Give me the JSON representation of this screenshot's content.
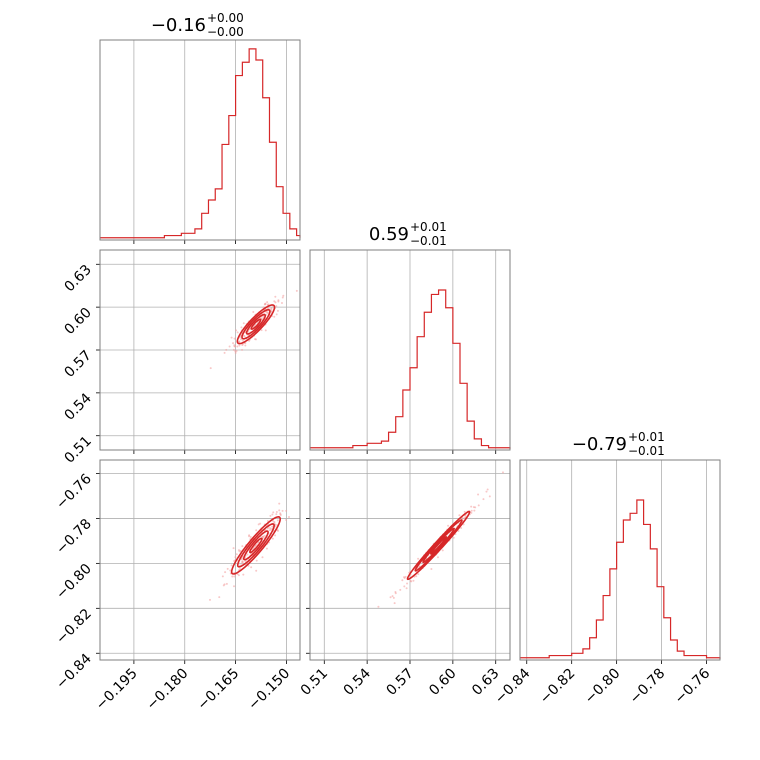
{
  "chart_data": {
    "type": "corner",
    "color": "#d62728",
    "scatter_color": "#f4a4a4",
    "grid": true,
    "parameters": [
      {
        "range": [
          -0.205,
          -0.146
        ],
        "ticks": [
          -0.195,
          -0.18,
          -0.165,
          -0.15
        ],
        "tick_labels": [
          "−0.195",
          "−0.180",
          "−0.165",
          "−0.150"
        ]
      },
      {
        "range": [
          0.5,
          0.64
        ],
        "ticks": [
          0.51,
          0.54,
          0.57,
          0.6,
          0.63
        ],
        "tick_labels": [
          "0.51",
          "0.54",
          "0.57",
          "0.60",
          "0.63"
        ]
      },
      {
        "range": [
          -0.843,
          -0.754
        ],
        "ticks": [
          -0.84,
          -0.82,
          -0.8,
          -0.78,
          -0.76
        ],
        "tick_labels": [
          "−0.84",
          "−0.82",
          "−0.80",
          "−0.78",
          "−0.76"
        ]
      }
    ],
    "titles": [
      {
        "main": "−0.16",
        "upper": "+0.00",
        "lower": "−0.00"
      },
      {
        "main": "0.59",
        "upper": "+0.01",
        "lower": "−0.01"
      },
      {
        "main": "−0.79",
        "upper": "+0.01",
        "lower": "−0.01"
      }
    ],
    "histograms": [
      {
        "x": [
          -0.205,
          -0.186,
          -0.183,
          -0.181,
          -0.179,
          -0.177,
          -0.175,
          -0.173,
          -0.171,
          -0.169,
          -0.167,
          -0.165,
          -0.163,
          -0.161,
          -0.159,
          -0.157,
          -0.155,
          -0.153,
          -0.151,
          -0.149,
          -0.147,
          -0.146
        ],
        "counts": [
          0.01,
          0.02,
          0.02,
          0.03,
          0.03,
          0.05,
          0.12,
          0.18,
          0.23,
          0.43,
          0.56,
          0.74,
          0.8,
          0.86,
          0.81,
          0.64,
          0.44,
          0.24,
          0.12,
          0.05,
          0.02,
          0.01
        ]
      },
      {
        "x": [
          0.5,
          0.52,
          0.53,
          0.54,
          0.55,
          0.555,
          0.56,
          0.565,
          0.57,
          0.575,
          0.58,
          0.585,
          0.59,
          0.595,
          0.6,
          0.605,
          0.61,
          0.615,
          0.62,
          0.625,
          0.64
        ],
        "counts": [
          0.01,
          0.01,
          0.02,
          0.03,
          0.04,
          0.08,
          0.15,
          0.27,
          0.37,
          0.51,
          0.62,
          0.7,
          0.72,
          0.64,
          0.48,
          0.3,
          0.13,
          0.05,
          0.02,
          0.01,
          0.005
        ]
      },
      {
        "x": [
          -0.843,
          -0.83,
          -0.82,
          -0.815,
          -0.812,
          -0.809,
          -0.806,
          -0.803,
          -0.8,
          -0.797,
          -0.794,
          -0.791,
          -0.788,
          -0.785,
          -0.782,
          -0.779,
          -0.776,
          -0.773,
          -0.77,
          -0.76,
          -0.754
        ],
        "counts": [
          0.01,
          0.02,
          0.03,
          0.05,
          0.1,
          0.18,
          0.29,
          0.41,
          0.53,
          0.63,
          0.66,
          0.72,
          0.61,
          0.5,
          0.33,
          0.19,
          0.09,
          0.04,
          0.02,
          0.01,
          0.005
        ]
      }
    ],
    "pairs": [
      {
        "row": 1,
        "col": 0,
        "center": [
          -0.159,
          0.588
        ],
        "slope": 2.7,
        "spread_major": 0.006,
        "spread_minor": 0.001
      },
      {
        "row": 2,
        "col": 0,
        "center": [
          -0.159,
          -0.792
        ],
        "slope": 1.85,
        "spread_major": 0.006,
        "spread_minor": 0.001
      },
      {
        "row": 2,
        "col": 1,
        "center": [
          0.59,
          -0.792
        ],
        "slope": 0.69,
        "spread_major": 0.011,
        "spread_minor": 0.0009
      }
    ]
  }
}
